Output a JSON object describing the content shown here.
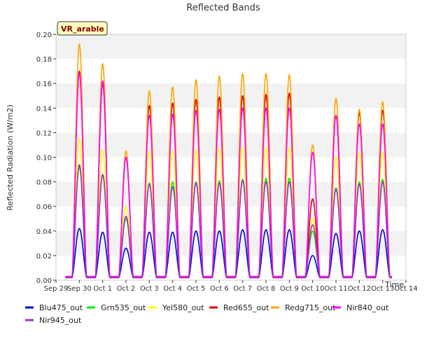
{
  "chart_data": {
    "type": "line",
    "title": "Reflected Bands",
    "xlabel": "Time",
    "ylabel": "Reflected Radiation (W/m2)",
    "ylim": [
      0,
      0.2
    ],
    "xlim": [
      -1,
      14
    ],
    "yticks": [
      "0.00",
      "0.02",
      "0.04",
      "0.06",
      "0.08",
      "0.10",
      "0.12",
      "0.14",
      "0.16",
      "0.18",
      "0.20"
    ],
    "xticks": [
      {
        "v": -1,
        "label": "Sep 29"
      },
      {
        "v": 0,
        "label": "Sep 30"
      },
      {
        "v": 1,
        "label": "Oct 1"
      },
      {
        "v": 2,
        "label": "Oct 2"
      },
      {
        "v": 3,
        "label": "Oct 3"
      },
      {
        "v": 4,
        "label": "Oct 4"
      },
      {
        "v": 5,
        "label": "Oct 5"
      },
      {
        "v": 6,
        "label": "Oct 6"
      },
      {
        "v": 7,
        "label": "Oct 7"
      },
      {
        "v": 8,
        "label": "Oct 8"
      },
      {
        "v": 9,
        "label": "Oct 9"
      },
      {
        "v": 10,
        "label": "Oct 10"
      },
      {
        "v": 11,
        "label": "Oct 11"
      },
      {
        "v": 12,
        "label": "Oct 12"
      },
      {
        "v": 13,
        "label": "Oct 13"
      },
      {
        "v": 14,
        "label": "Oct 14"
      }
    ],
    "grid": "horizontal bands",
    "annotation": "VR_arable",
    "legend_position": "bottom",
    "day_centers": [
      0.0,
      1.0,
      2.0,
      3.0,
      4.0,
      5.0,
      6.0,
      7.0,
      8.0,
      9.0,
      10.0,
      11.0,
      12.0,
      13.0
    ],
    "series": [
      {
        "name": "Blu475_out",
        "color": "#0000dd",
        "night": 0.002,
        "peaks": [
          0.042,
          0.039,
          0.026,
          0.039,
          0.039,
          0.04,
          0.04,
          0.041,
          0.041,
          0.041,
          0.02,
          0.038,
          0.04,
          0.041
        ]
      },
      {
        "name": "Grn535_out",
        "color": "#00ee00",
        "night": 0.002,
        "peaks": [
          0.092,
          0.085,
          0.05,
          0.079,
          0.08,
          0.08,
          0.081,
          0.082,
          0.083,
          0.083,
          0.04,
          0.075,
          0.08,
          0.082
        ]
      },
      {
        "name": "Yel580_out",
        "color": "#ffff00",
        "night": 0.002,
        "peaks": [
          0.115,
          0.106,
          0.06,
          0.105,
          0.105,
          0.106,
          0.107,
          0.108,
          0.108,
          0.108,
          0.05,
          0.1,
          0.104,
          0.104
        ]
      },
      {
        "name": "Red655_out",
        "color": "#dd0000",
        "night": 0.002,
        "peaks": [
          0.17,
          0.16,
          0.1,
          0.142,
          0.144,
          0.147,
          0.149,
          0.15,
          0.151,
          0.152,
          0.066,
          0.134,
          0.136,
          0.138
        ]
      },
      {
        "name": "Redg715_out",
        "color": "#ffa500",
        "night": 0.002,
        "peaks": [
          0.192,
          0.176,
          0.105,
          0.154,
          0.157,
          0.163,
          0.166,
          0.168,
          0.168,
          0.167,
          0.11,
          0.148,
          0.139,
          0.145
        ]
      },
      {
        "name": "Nir840_out",
        "color": "#ff00ff",
        "night": 0.003,
        "peaks": [
          0.168,
          0.162,
          0.1,
          0.134,
          0.135,
          0.138,
          0.139,
          0.14,
          0.14,
          0.14,
          0.104,
          0.134,
          0.127,
          0.127
        ]
      },
      {
        "name": "Nir945_out",
        "color": "#9932cc",
        "night": 0.002,
        "peaks": [
          0.094,
          0.086,
          0.052,
          0.078,
          0.076,
          0.079,
          0.079,
          0.081,
          0.08,
          0.08,
          0.045,
          0.074,
          0.078,
          0.08
        ]
      }
    ]
  }
}
